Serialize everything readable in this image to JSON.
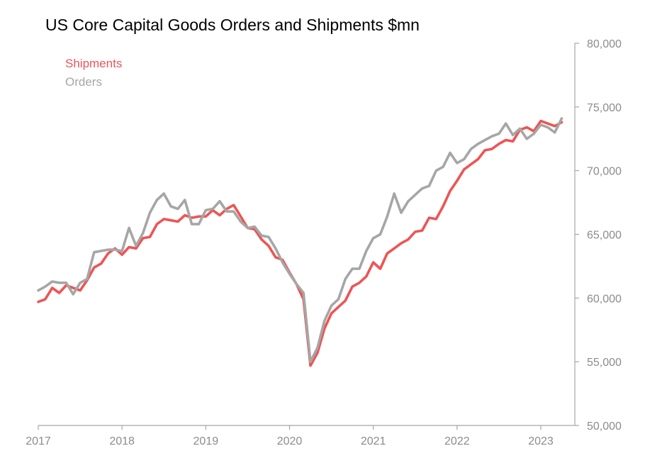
{
  "chart_data": {
    "type": "line",
    "title": "US Core Capital Goods Orders and Shipments $mn",
    "xlabel": "",
    "ylabel": "",
    "x_start": 2017.0,
    "x_step": 0.08333,
    "xlim": [
      2017.0,
      2023.42
    ],
    "ylim": [
      50000,
      80000
    ],
    "x_ticks": [
      2017,
      2018,
      2019,
      2020,
      2021,
      2022,
      2023
    ],
    "x_tick_labels": [
      "2017",
      "2018",
      "2019",
      "2020",
      "2021",
      "2022",
      "2023"
    ],
    "y_ticks": [
      50000,
      55000,
      60000,
      65000,
      70000,
      75000,
      80000
    ],
    "y_tick_labels": [
      "50,000",
      "55,000",
      "60,000",
      "65,000",
      "70,000",
      "75,000",
      "80,000"
    ],
    "y_axis_position": "right",
    "grid": false,
    "legend_position": "top-left",
    "series": [
      {
        "name": "Shipments",
        "color": "#ee5454",
        "values": [
          59700,
          59900,
          60800,
          60400,
          61000,
          60800,
          60600,
          61400,
          62400,
          62700,
          63500,
          63900,
          63400,
          64000,
          63900,
          64700,
          64800,
          65800,
          66200,
          66100,
          66000,
          66500,
          66300,
          66400,
          66400,
          66900,
          66500,
          67000,
          67300,
          66400,
          65500,
          65400,
          64600,
          64100,
          63200,
          63000,
          62000,
          61100,
          59900,
          54700,
          55700,
          57600,
          58800,
          59300,
          59800,
          60900,
          61200,
          61700,
          62800,
          62300,
          63500,
          63900,
          64300,
          64600,
          65200,
          65300,
          66300,
          66200,
          67200,
          68400,
          69200,
          70100,
          70500,
          70900,
          71600,
          71700,
          72100,
          72400,
          72300,
          73200,
          73400,
          73100,
          73900,
          73700,
          73500,
          73800
        ]
      },
      {
        "name": "Orders",
        "color": "#a6a6a6",
        "values": [
          60600,
          60900,
          61300,
          61200,
          61200,
          60300,
          61200,
          61500,
          63600,
          63700,
          63800,
          63800,
          63700,
          65500,
          64100,
          65100,
          66700,
          67700,
          68200,
          67200,
          67000,
          67700,
          65800,
          65800,
          66900,
          67000,
          67600,
          66800,
          66800,
          66000,
          65500,
          65600,
          64900,
          64800,
          63900,
          62800,
          61900,
          61100,
          60400,
          55000,
          56100,
          58200,
          59400,
          59900,
          61500,
          62300,
          62300,
          63700,
          64700,
          65000,
          66400,
          68200,
          66700,
          67600,
          68100,
          68600,
          68800,
          70000,
          70300,
          71400,
          70600,
          70900,
          71700,
          72100,
          72400,
          72700,
          72900,
          73700,
          72800,
          73300,
          72500,
          72900,
          73600,
          73400,
          73000,
          74100
        ]
      }
    ]
  }
}
